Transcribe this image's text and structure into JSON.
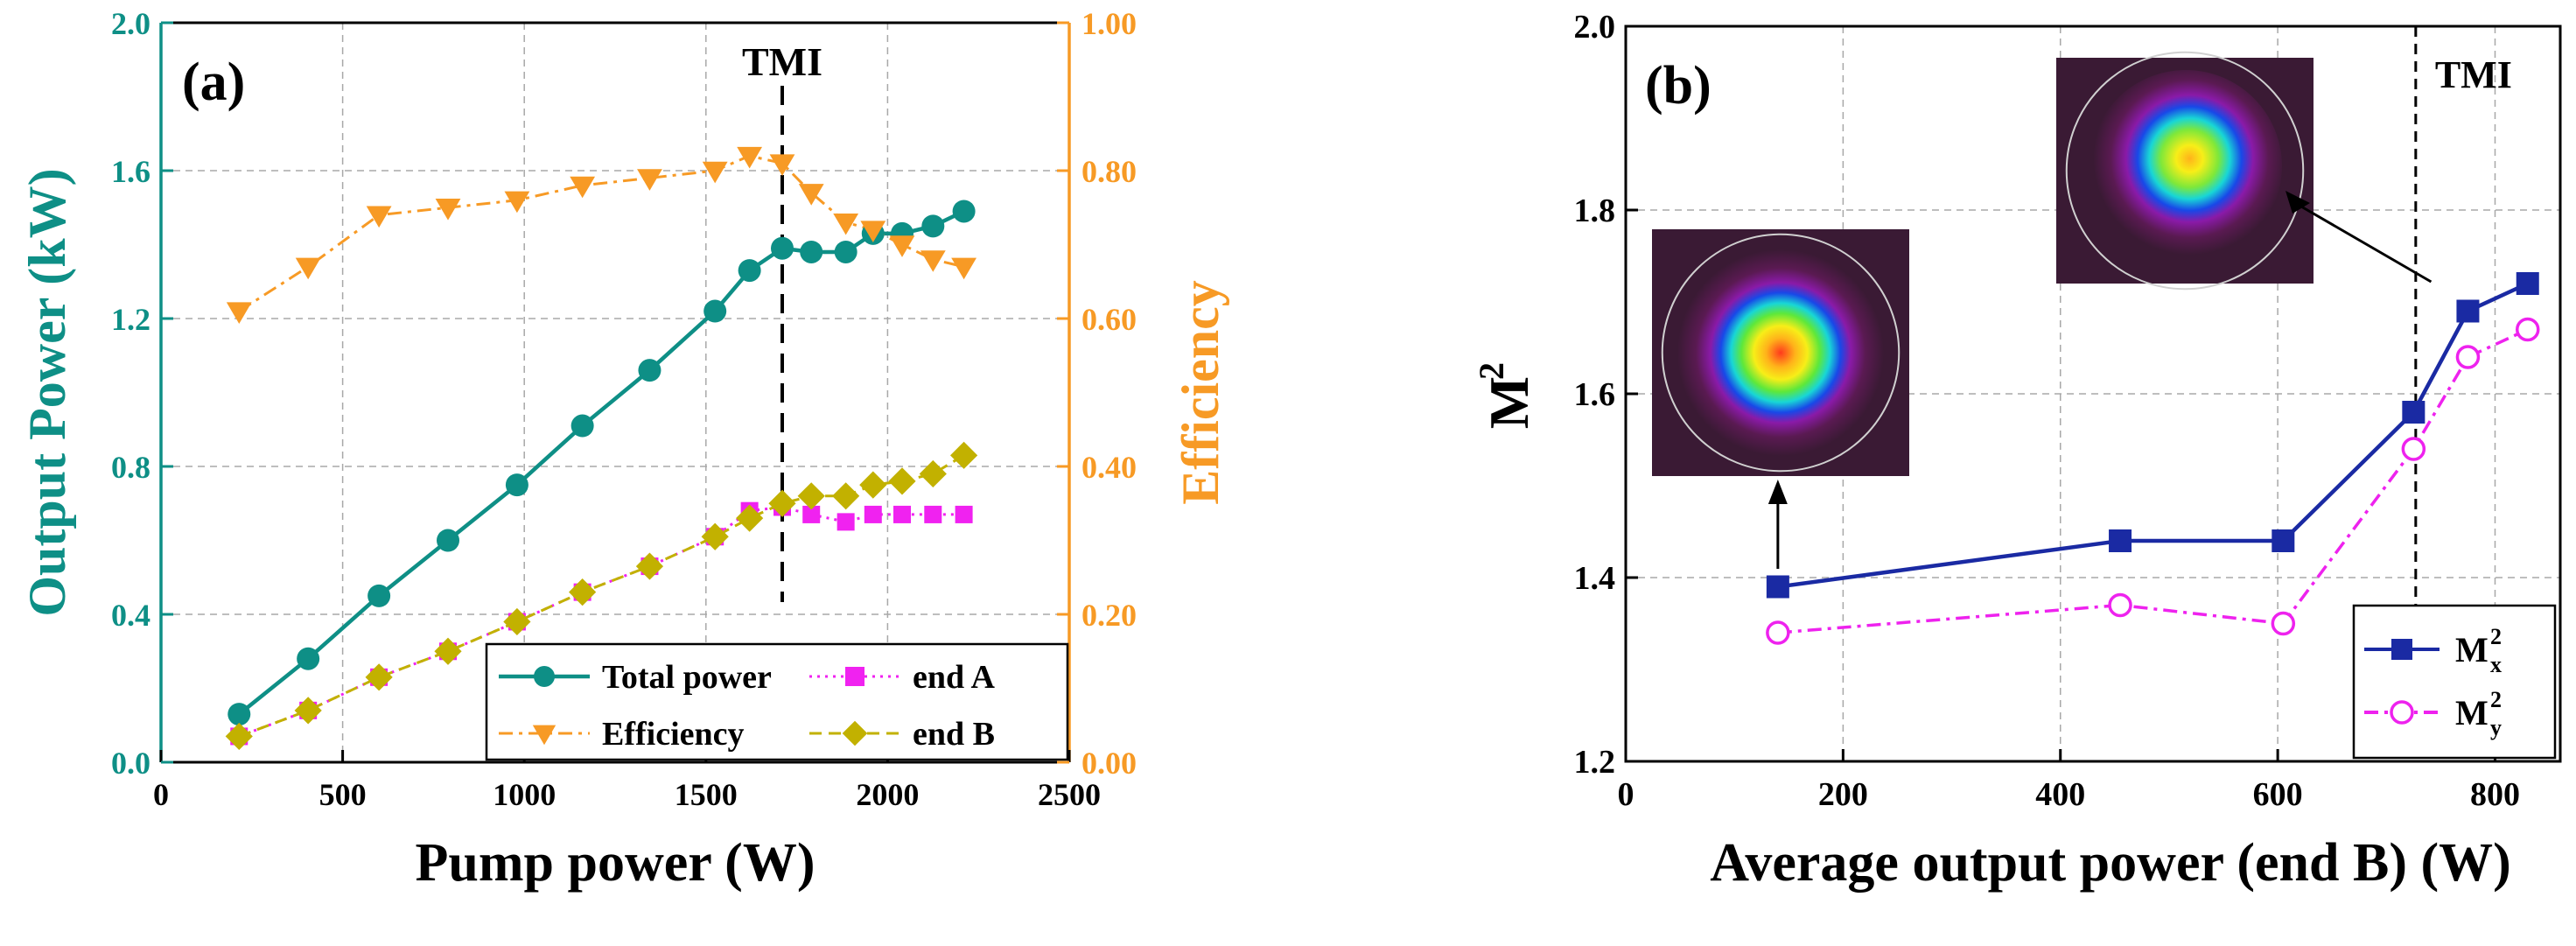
{
  "chart_data": [
    {
      "panel": "(a)",
      "type": "line",
      "xlabel": "Pump power (W)",
      "ylabel_left": "Output Power (kW)",
      "ylabel_right": "Efficiency",
      "xlim": [
        0,
        2500
      ],
      "ylim_left": [
        0.0,
        2.0
      ],
      "ylim_right": [
        0.0,
        1.0
      ],
      "x_ticks": [
        "0",
        "500",
        "1000",
        "1500",
        "2000",
        "2500"
      ],
      "y_left_ticks": [
        "0.0",
        "0.4",
        "0.8",
        "1.2",
        "1.6",
        "2.0"
      ],
      "y_right_ticks": [
        "0.00",
        "0.20",
        "0.40",
        "0.60",
        "0.80",
        "1.00"
      ],
      "grid": true,
      "annotation": {
        "label": "TMI",
        "x": 1710
      },
      "legend": {
        "position": "bottom-right",
        "items": [
          "Total power",
          "end A",
          "Efficiency",
          "end B"
        ]
      },
      "series": [
        {
          "name": "Total power",
          "axis": "left",
          "color": "#0e8f86",
          "marker": "circle",
          "dash": "solid",
          "x": [
            215,
            405,
            600,
            790,
            980,
            1160,
            1345,
            1525,
            1620,
            1710,
            1790,
            1885,
            1960,
            2040,
            2125,
            2210
          ],
          "y": [
            0.13,
            0.28,
            0.45,
            0.6,
            0.75,
            0.91,
            1.06,
            1.22,
            1.33,
            1.39,
            1.38,
            1.38,
            1.43,
            1.43,
            1.45,
            1.49
          ]
        },
        {
          "name": "end A",
          "axis": "left",
          "color": "#f022f0",
          "marker": "square",
          "dash": "dotted",
          "x": [
            215,
            405,
            600,
            790,
            980,
            1160,
            1345,
            1525,
            1620,
            1710,
            1790,
            1885,
            1960,
            2040,
            2125,
            2210
          ],
          "y": [
            0.07,
            0.14,
            0.23,
            0.3,
            0.38,
            0.46,
            0.53,
            0.61,
            0.68,
            0.69,
            0.67,
            0.65,
            0.67,
            0.67,
            0.67,
            0.67
          ]
        },
        {
          "name": "Efficiency",
          "axis": "right",
          "color": "#f79a25",
          "marker": "triangle-down",
          "dash": "dashdot",
          "x": [
            215,
            405,
            600,
            790,
            980,
            1160,
            1345,
            1525,
            1620,
            1710,
            1790,
            1885,
            1960,
            2040,
            2125,
            2210
          ],
          "y": [
            0.61,
            0.67,
            0.74,
            0.75,
            0.76,
            0.78,
            0.79,
            0.8,
            0.82,
            0.81,
            0.77,
            0.73,
            0.72,
            0.7,
            0.68,
            0.67
          ]
        },
        {
          "name": "end B",
          "axis": "left",
          "color": "#c2b100",
          "marker": "diamond",
          "dash": "dashed",
          "x": [
            215,
            405,
            600,
            790,
            980,
            1160,
            1345,
            1525,
            1620,
            1710,
            1790,
            1885,
            1960,
            2040,
            2125,
            2210
          ],
          "y": [
            0.07,
            0.14,
            0.23,
            0.3,
            0.38,
            0.46,
            0.53,
            0.61,
            0.66,
            0.7,
            0.72,
            0.72,
            0.75,
            0.76,
            0.78,
            0.83
          ]
        }
      ]
    },
    {
      "panel": "(b)",
      "type": "line",
      "xlabel": "Average output power (end B) (W)",
      "ylabel": "M",
      "ylabel_sup": "2",
      "xlim": [
        0,
        860
      ],
      "ylim": [
        1.2,
        2.0
      ],
      "x_ticks": [
        "0",
        "200",
        "400",
        "600",
        "800"
      ],
      "y_ticks": [
        "1.2",
        "1.4",
        "1.6",
        "1.8",
        "2.0"
      ],
      "grid": true,
      "annotation": {
        "label": "TMI",
        "x": 727
      },
      "legend": {
        "position": "bottom-right",
        "items": [
          {
            "base": "M",
            "sup": "2",
            "sub": "x"
          },
          {
            "base": "M",
            "sup": "2",
            "sub": "y"
          }
        ]
      },
      "series": [
        {
          "name": "M2x",
          "color": "#1a2aa3",
          "marker": "square",
          "dash": "solid",
          "x": [
            140,
            455,
            605,
            725,
            775,
            830
          ],
          "y": [
            1.39,
            1.44,
            1.44,
            1.58,
            1.69,
            1.72
          ]
        },
        {
          "name": "M2y",
          "color": "#ee22ee",
          "marker": "open-circle",
          "dash": "dashdot",
          "x": [
            140,
            455,
            605,
            725,
            775,
            830
          ],
          "y": [
            1.34,
            1.37,
            1.35,
            1.54,
            1.64,
            1.67
          ]
        }
      ],
      "insets": [
        {
          "name": "beam-profile-low-power",
          "points_to_x": 140,
          "points_to_y": 1.39
        },
        {
          "name": "beam-profile-high-power",
          "points_to_x": 775,
          "points_to_y": 1.69
        }
      ]
    }
  ]
}
